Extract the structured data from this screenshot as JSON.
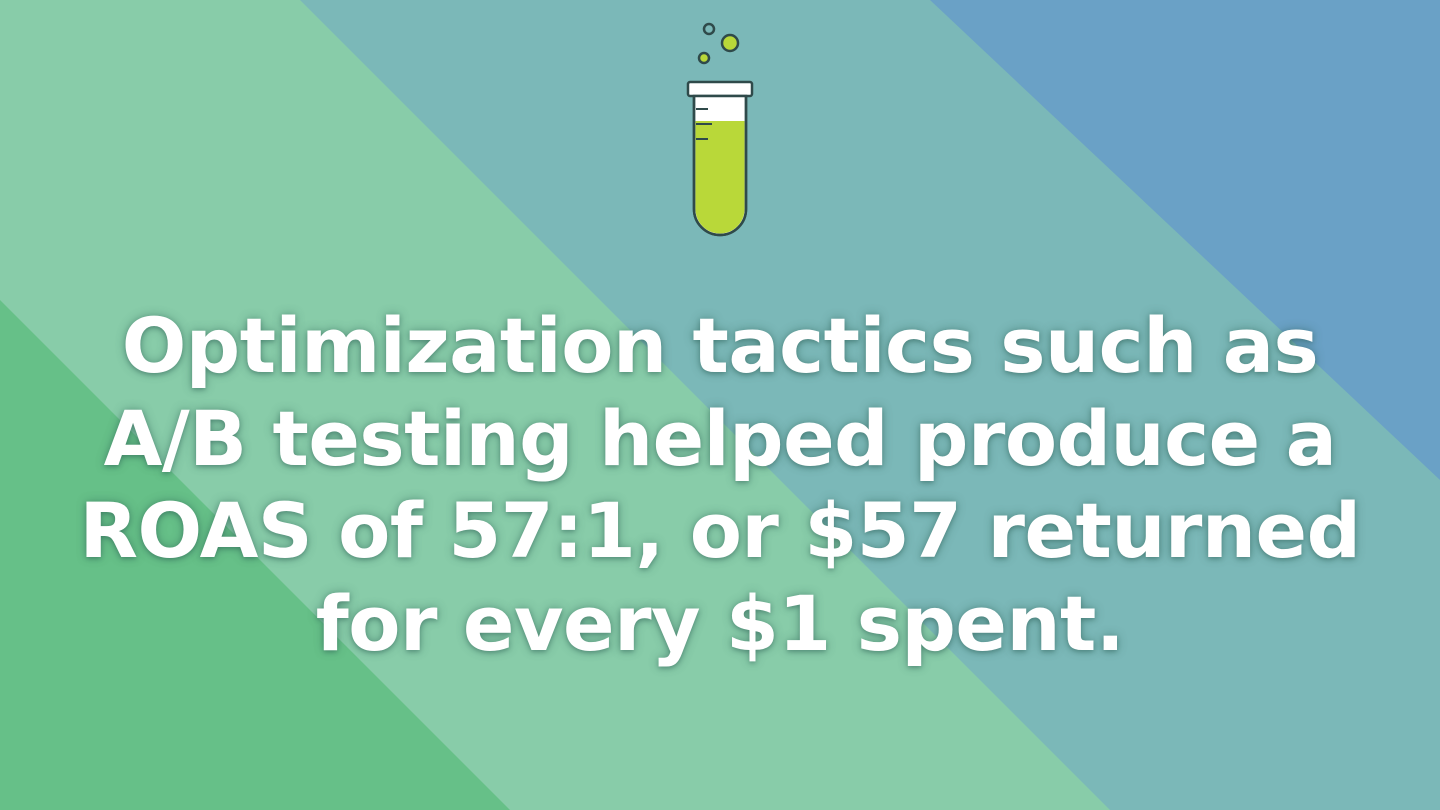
{
  "colors": {
    "band_left": "#66c088",
    "band_light_green": "#88cca9",
    "band_teal": "#7bb8b8",
    "band_blue": "#6aa1c6",
    "tube_outline": "#2f4a4a",
    "tube_glass": "#ffffff",
    "tube_liquid": "#b9d839",
    "text": "#ffffff"
  },
  "icon": {
    "name": "test-tube-icon"
  },
  "headline": {
    "line1": "Optimization tactics such as",
    "line2": "A/B testing helped produce a",
    "line3": "ROAS of 57:1, or $57 returned",
    "line4": "for every $1 spent."
  }
}
